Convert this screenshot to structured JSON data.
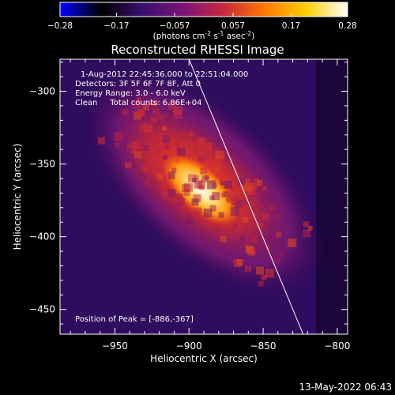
{
  "colorbar": {
    "tick_labels": [
      "-0.28",
      "-0.17",
      "-0.057",
      "0.057",
      "0.17",
      "0.28"
    ],
    "min": -0.28,
    "max": 0.28,
    "units_main": "(photons cm",
    "units_sup1": "-2",
    "units_mid": " s",
    "units_sup2": "-1",
    "units_mid2": " asec",
    "units_sup3": "-2",
    "units_end": ")",
    "colors": [
      "#0000ff",
      "#000000",
      "#3a1070",
      "#7a1478",
      "#c82a3a",
      "#ff7a00",
      "#ffd000",
      "#ffffff"
    ]
  },
  "image": {
    "title": "Reconstructed RHESSI Image",
    "info_lines": [
      "1-Aug-2012 22:45:36.000 to 22:51:04.000",
      "Detectors: 3F 5F 6F 7F 8F, Att 0",
      "Energy Range: 3.0 - 6.0 keV",
      "Clean     Total counts: 6.86E+04"
    ],
    "peak_text": "Position of Peak = [-886,-367]",
    "peak": {
      "x": -886,
      "y": -367
    },
    "timestamp": "13-May-2022 06:43"
  },
  "axes": {
    "xlabel": "Heliocentric X (arcsec)",
    "ylabel": "Heliocentric Y (arcsec)",
    "xlim": [
      -987,
      -793
    ],
    "ylim": [
      -467,
      -278
    ],
    "x_ticks": [
      {
        "value": -950,
        "label": "−950"
      },
      {
        "value": -900,
        "label": "−900"
      },
      {
        "value": -850,
        "label": "−850"
      },
      {
        "value": -800,
        "label": "−800"
      }
    ],
    "y_ticks": [
      {
        "value": -300,
        "label": "−300"
      },
      {
        "value": -350,
        "label": "−350"
      },
      {
        "value": -400,
        "label": "−400"
      },
      {
        "value": -450,
        "label": "−450"
      }
    ],
    "limb_line": {
      "x1": -900,
      "y1": -278,
      "x2": -823,
      "y2": -467
    }
  }
}
